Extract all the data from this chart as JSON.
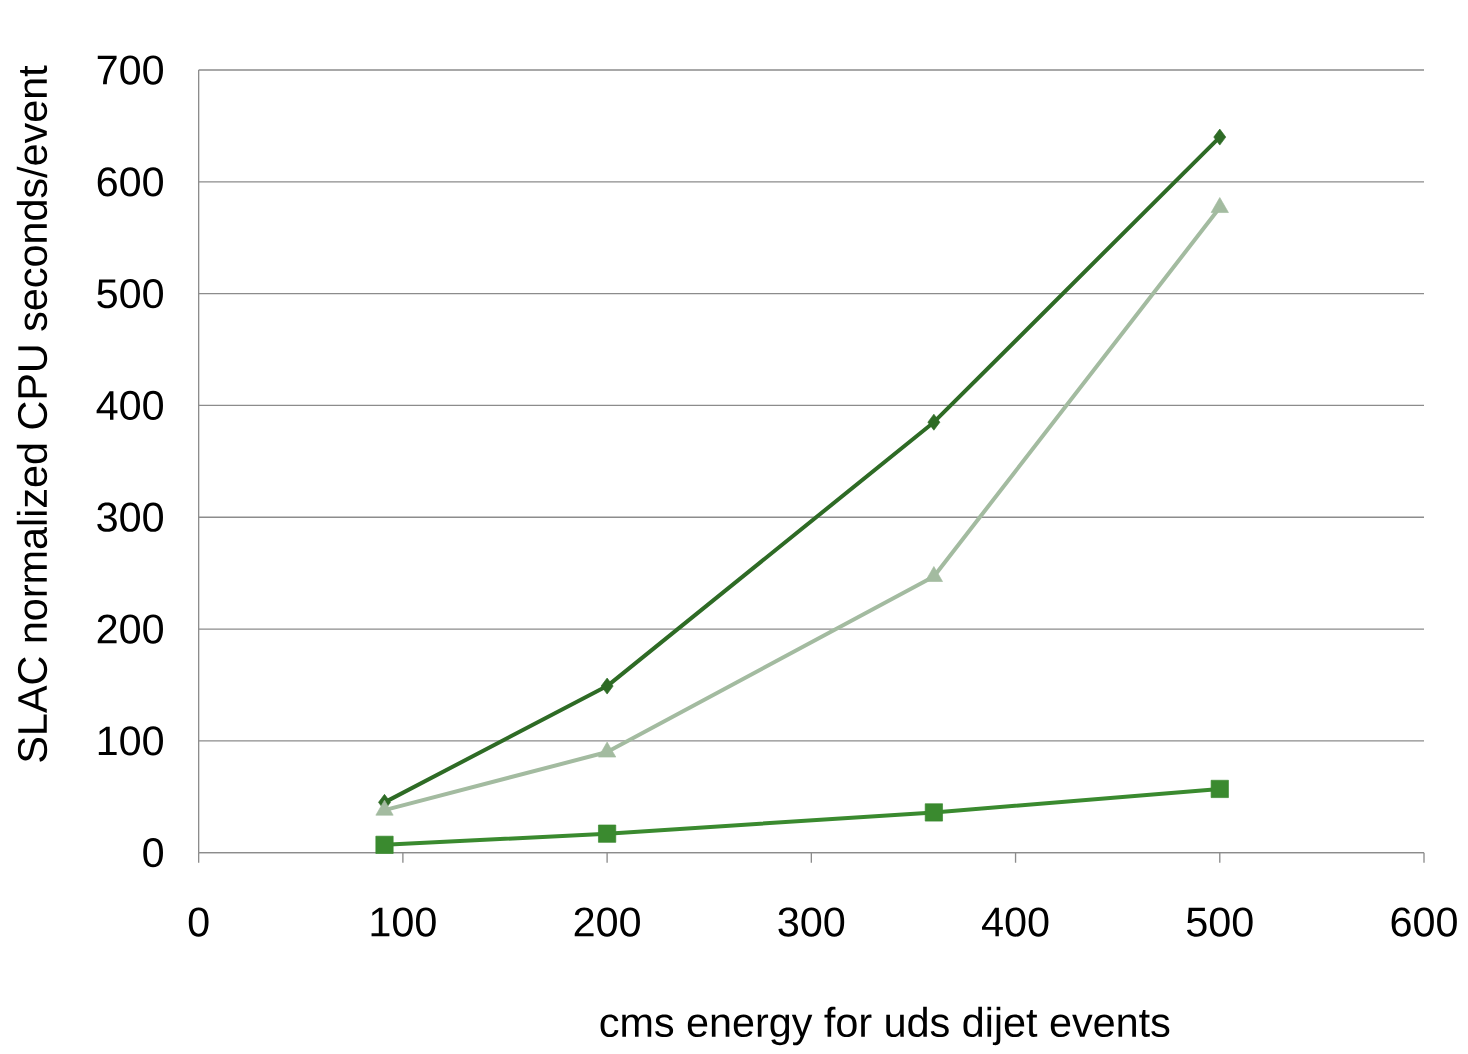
{
  "chart_data": {
    "type": "line",
    "xlabel": "cms energy for uds dijet events",
    "ylabel": "SLAC normalized CPU seconds/event",
    "x": [
      91,
      200,
      360,
      500
    ],
    "series": [
      {
        "color": "#2e6b25",
        "marker": "diamond",
        "values": [
          45,
          149,
          385,
          640
        ]
      },
      {
        "color": "#a3bba0",
        "marker": "triangle",
        "values": [
          38,
          90,
          247,
          577
        ]
      },
      {
        "color": "#3a8a2f",
        "marker": "square",
        "values": [
          7,
          17,
          36,
          57
        ]
      }
    ],
    "xlim": [
      0,
      600
    ],
    "xticks": [
      0,
      100,
      200,
      300,
      400,
      500,
      600
    ],
    "ylim": [
      0,
      700
    ],
    "yticks": [
      0,
      100,
      200,
      300,
      400,
      500,
      600,
      700
    ],
    "grid": "y",
    "legend": false
  }
}
